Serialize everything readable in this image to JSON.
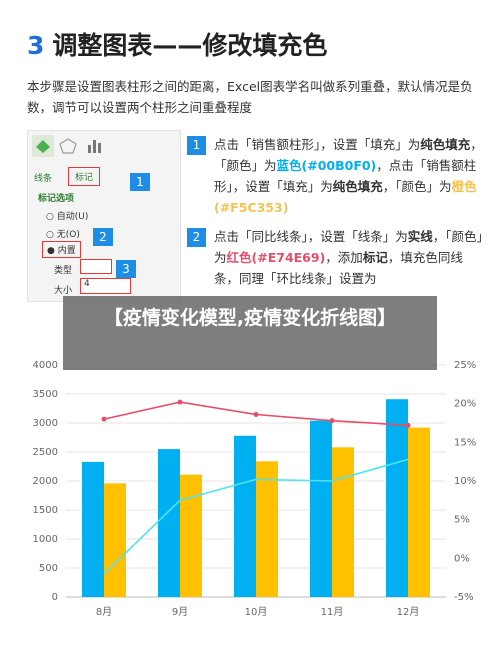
{
  "header": {
    "number": "3",
    "title": "调整图表——修改填充色"
  },
  "intro": "本步骤是设置图表柱形之间的距离，Excel图表学名叫做系列重叠，默认情况是负数，调节可以设置两个柱形之间重叠程度",
  "panel": {
    "tabs": [
      "线条",
      "标记"
    ],
    "section": "标记选项",
    "options": [
      "自动(U)",
      "无(O)",
      "内置"
    ],
    "type_label": "类型",
    "size_label": "大小",
    "size_value": "4",
    "callouts": [
      "1",
      "2",
      "3"
    ]
  },
  "steps": [
    {
      "number": "1",
      "parts": [
        {
          "text": "点击「销售额柱形」，设置「填充」为"
        },
        {
          "text": "纯色填充",
          "bold": true
        },
        {
          "text": "，「颜色」为"
        },
        {
          "text": "蓝色(#00B0F0)",
          "bold": true,
          "color": "#00B0F0"
        },
        {
          "text": "，点击「销售额柱形」，设置「填充」为"
        },
        {
          "text": "纯色填充",
          "bold": true
        },
        {
          "text": "，「颜色」为"
        },
        {
          "text": "橙色(#F5C353)",
          "bold": true,
          "color": "#F5C353"
        }
      ]
    },
    {
      "number": "2",
      "parts": [
        {
          "text": "点击「同比线条」，设置「线条」为"
        },
        {
          "text": "实线",
          "bold": true
        },
        {
          "text": "，「颜色」为"
        },
        {
          "text": "红色(#E74E69)",
          "bold": true,
          "color": "#E74E69"
        },
        {
          "text": "，添加"
        },
        {
          "text": "标记",
          "bold": true
        },
        {
          "text": "，填充色同线条，同理「环比线条」设置为"
        }
      ]
    }
  ],
  "banner": "【疫情变化模型,疫情变化折线图】",
  "chart_data": {
    "type": "bar",
    "categories": [
      "8月",
      "9月",
      "10月",
      "11月",
      "12月"
    ],
    "series": [
      {
        "color": "#00B0F0",
        "values": [
          2330,
          2550,
          2780,
          3040,
          3410
        ]
      },
      {
        "color": "#FFC000",
        "values": [
          1960,
          2110,
          2340,
          2580,
          2920
        ]
      },
      {
        "type": "line",
        "axis": "y2",
        "color": "#E74E69",
        "marker": true,
        "values": [
          18,
          20.2,
          18.6,
          17.8,
          17.2
        ]
      },
      {
        "type": "line",
        "axis": "y2",
        "color": "#4FE3F0",
        "marker": false,
        "values": [
          -2,
          7.5,
          10.2,
          10,
          12.8
        ]
      }
    ],
    "ylim": [
      0,
      4000
    ],
    "yticks": [
      0,
      500,
      1000,
      1500,
      2000,
      2500,
      3000,
      3500,
      4000
    ],
    "y2lim": [
      -5,
      25
    ],
    "y2ticks": [
      {
        "value": -5,
        "label": "-5%"
      },
      {
        "value": 0,
        "label": "0%"
      },
      {
        "value": 5,
        "label": "5%"
      },
      {
        "value": 10,
        "label": "10%"
      },
      {
        "value": 15,
        "label": "15%"
      },
      {
        "value": 20,
        "label": "20%"
      },
      {
        "value": 25,
        "label": "25%"
      }
    ],
    "grid": true
  }
}
